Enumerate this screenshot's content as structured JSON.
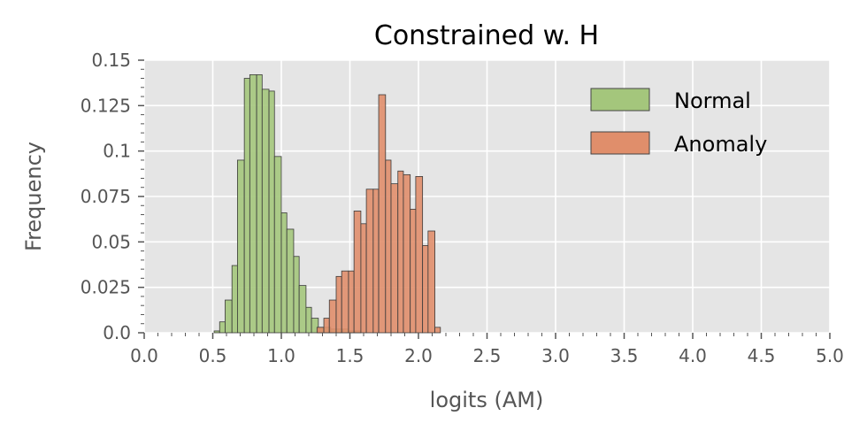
{
  "chart_data": {
    "type": "histogram",
    "title": "Constrained w. H",
    "xlabel": "logits (AM)",
    "ylabel": "Frequency",
    "xlim": [
      0.0,
      5.0
    ],
    "ylim": [
      0.0,
      0.15
    ],
    "xticks": [
      "0.0",
      "0.5",
      "1.0",
      "1.5",
      "2.0",
      "2.5",
      "3.0",
      "3.5",
      "4.0",
      "4.5",
      "5.0"
    ],
    "yticks": [
      "0.0",
      "0.025",
      "0.05",
      "0.075",
      "0.1",
      "0.125",
      "0.15"
    ],
    "grid": true,
    "legend_position": "top-right",
    "series": [
      {
        "name": "Normal",
        "color": "#a4c67c",
        "bins": [
          {
            "x0": 0.51,
            "x1": 0.55,
            "y": 0.001
          },
          {
            "x0": 0.55,
            "x1": 0.59,
            "y": 0.006
          },
          {
            "x0": 0.59,
            "x1": 0.64,
            "y": 0.018
          },
          {
            "x0": 0.64,
            "x1": 0.68,
            "y": 0.037
          },
          {
            "x0": 0.68,
            "x1": 0.73,
            "y": 0.095
          },
          {
            "x0": 0.73,
            "x1": 0.77,
            "y": 0.14
          },
          {
            "x0": 0.77,
            "x1": 0.82,
            "y": 0.142
          },
          {
            "x0": 0.82,
            "x1": 0.86,
            "y": 0.142
          },
          {
            "x0": 0.86,
            "x1": 0.91,
            "y": 0.134
          },
          {
            "x0": 0.91,
            "x1": 0.95,
            "y": 0.133
          },
          {
            "x0": 0.95,
            "x1": 1.0,
            "y": 0.097
          },
          {
            "x0": 1.0,
            "x1": 1.04,
            "y": 0.066
          },
          {
            "x0": 1.04,
            "x1": 1.09,
            "y": 0.057
          },
          {
            "x0": 1.09,
            "x1": 1.13,
            "y": 0.042
          },
          {
            "x0": 1.13,
            "x1": 1.18,
            "y": 0.026
          },
          {
            "x0": 1.18,
            "x1": 1.22,
            "y": 0.014
          },
          {
            "x0": 1.22,
            "x1": 1.27,
            "y": 0.008
          },
          {
            "x0": 1.27,
            "x1": 1.31,
            "y": 0.003
          },
          {
            "x0": 1.31,
            "x1": 1.36,
            "y": 0.003
          },
          {
            "x0": 1.36,
            "x1": 1.4,
            "y": 0.002
          },
          {
            "x0": 1.4,
            "x1": 1.45,
            "y": 0.002
          },
          {
            "x0": 1.45,
            "x1": 1.49,
            "y": 0.002
          },
          {
            "x0": 1.49,
            "x1": 1.54,
            "y": 0.001
          },
          {
            "x0": 1.54,
            "x1": 1.58,
            "y": 0.001
          }
        ]
      },
      {
        "name": "Anomaly",
        "color": "#e08e6b",
        "bins": [
          {
            "x0": 1.26,
            "x1": 1.31,
            "y": 0.003
          },
          {
            "x0": 1.31,
            "x1": 1.35,
            "y": 0.008
          },
          {
            "x0": 1.35,
            "x1": 1.4,
            "y": 0.018
          },
          {
            "x0": 1.4,
            "x1": 1.44,
            "y": 0.031
          },
          {
            "x0": 1.44,
            "x1": 1.49,
            "y": 0.034
          },
          {
            "x0": 1.49,
            "x1": 1.53,
            "y": 0.034
          },
          {
            "x0": 1.53,
            "x1": 1.58,
            "y": 0.067
          },
          {
            "x0": 1.58,
            "x1": 1.62,
            "y": 0.06
          },
          {
            "x0": 1.62,
            "x1": 1.67,
            "y": 0.079
          },
          {
            "x0": 1.67,
            "x1": 1.71,
            "y": 0.079
          },
          {
            "x0": 1.71,
            "x1": 1.76,
            "y": 0.131
          },
          {
            "x0": 1.76,
            "x1": 1.8,
            "y": 0.095
          },
          {
            "x0": 1.8,
            "x1": 1.85,
            "y": 0.082
          },
          {
            "x0": 1.85,
            "x1": 1.89,
            "y": 0.089
          },
          {
            "x0": 1.89,
            "x1": 1.94,
            "y": 0.087
          },
          {
            "x0": 1.94,
            "x1": 1.98,
            "y": 0.068
          },
          {
            "x0": 1.98,
            "x1": 2.03,
            "y": 0.086
          },
          {
            "x0": 2.03,
            "x1": 2.07,
            "y": 0.048
          },
          {
            "x0": 2.07,
            "x1": 2.12,
            "y": 0.056
          },
          {
            "x0": 2.12,
            "x1": 2.16,
            "y": 0.003
          }
        ]
      }
    ]
  }
}
